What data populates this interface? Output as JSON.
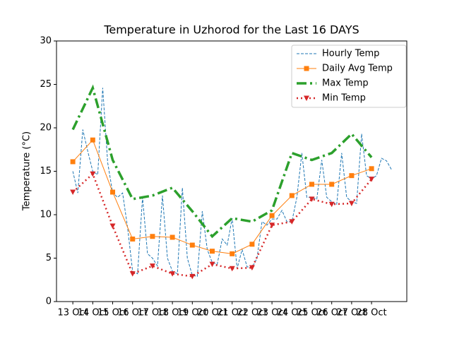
{
  "chart_data": {
    "type": "line",
    "title": "Temperature in Uzhorod for the Last 16 DAYS",
    "y_label": "Temperature (°C)",
    "xlim": [
      -0.82,
      16.77
    ],
    "ylim": [
      0,
      30
    ],
    "yticks": [
      0,
      5,
      10,
      15,
      20,
      25,
      30
    ],
    "xticks": [
      {
        "value": 0,
        "label": "13 Oct"
      },
      {
        "value": 1,
        "label": "14 Oct"
      },
      {
        "value": 2,
        "label": "15 Oct"
      },
      {
        "value": 3,
        "label": "16 Oct"
      },
      {
        "value": 4,
        "label": "17 Oct"
      },
      {
        "value": 5,
        "label": "18 Oct"
      },
      {
        "value": 6,
        "label": "19 Oct"
      },
      {
        "value": 7,
        "label": "20 Oct"
      },
      {
        "value": 8,
        "label": "21 Oct"
      },
      {
        "value": 9,
        "label": "22 Oct"
      },
      {
        "value": 10,
        "label": "23 Oct"
      },
      {
        "value": 11,
        "label": "24 Oct"
      },
      {
        "value": 12,
        "label": "25 Oct"
      },
      {
        "value": 13,
        "label": "26 Oct"
      },
      {
        "value": 14,
        "label": "27 Oct"
      },
      {
        "value": 15,
        "label": "28 Oct"
      }
    ],
    "x": [
      0,
      1,
      2,
      3,
      4,
      5,
      6,
      7,
      8,
      9,
      10,
      11,
      12,
      13,
      14,
      15
    ],
    "legend": "upper right",
    "series": [
      {
        "name": "Hourly Temp",
        "color": "#1f77b4",
        "style": "dashed",
        "linewidth": 1,
        "x": [
          0,
          0.25,
          0.5,
          0.75,
          1,
          1.25,
          1.5,
          1.75,
          2,
          2.25,
          2.5,
          2.75,
          3,
          3.25,
          3.5,
          3.75,
          4,
          4.25,
          4.5,
          4.75,
          5,
          5.25,
          5.5,
          5.75,
          6,
          6.25,
          6.5,
          6.75,
          7,
          7.25,
          7.5,
          7.75,
          8,
          8.25,
          8.5,
          8.75,
          9,
          9.25,
          9.5,
          9.75,
          10,
          10.25,
          10.5,
          10.75,
          11,
          11.25,
          11.5,
          11.75,
          12,
          12.25,
          12.5,
          12.75,
          13,
          13.25,
          13.5,
          13.75,
          14,
          14.25,
          14.5,
          14.75,
          15,
          15.25,
          15.5,
          15.75,
          16
        ],
        "values": [
          15,
          12.5,
          19.8,
          17.3,
          15,
          14.6,
          24.6,
          16,
          12.5,
          12,
          12.5,
          8.5,
          3.5,
          3.2,
          12,
          5.5,
          5,
          4.1,
          12.2,
          5,
          3.5,
          3.2,
          13.1,
          5,
          3,
          2.9,
          10.4,
          6,
          4.5,
          4.3,
          7.2,
          6.5,
          9.6,
          3.8,
          6,
          4,
          3.9,
          5,
          9.2,
          8.8,
          9.5,
          9.5,
          10.5,
          9.2,
          9.2,
          12,
          17.1,
          12,
          12,
          11.8,
          16.3,
          12,
          11.5,
          11.2,
          17.1,
          12,
          11.5,
          11.3,
          19.3,
          14.5,
          14.1,
          14.5,
          16.5,
          16.2,
          15.2
        ]
      },
      {
        "name": "Daily Avg Temp",
        "color": "#ff7f0e",
        "style": "solid",
        "linewidth": 1,
        "marker": "square",
        "values": [
          16.1,
          18.6,
          12.6,
          7.2,
          7.5,
          7.4,
          6.5,
          5.8,
          5.5,
          6.6,
          9.9,
          12.2,
          13.5,
          13.5,
          14.5,
          15.3
        ]
      },
      {
        "name": "Max Temp",
        "color": "#2ca02c",
        "style": "dashdot",
        "linewidth": 3.5,
        "values": [
          19.8,
          24.6,
          16.3,
          11.8,
          12.2,
          13.1,
          10.4,
          7.5,
          9.6,
          9.2,
          10.5,
          17.1,
          16.3,
          17.1,
          19.3,
          16.6
        ]
      },
      {
        "name": "Min Temp",
        "color": "#d62728",
        "style": "dotted",
        "linewidth": 2.5,
        "marker": "triangle_down",
        "values": [
          12.6,
          14.7,
          8.7,
          3.2,
          4.1,
          3.2,
          2.9,
          4.3,
          3.8,
          3.9,
          8.8,
          9.2,
          11.8,
          11.2,
          11.3,
          14.1
        ]
      }
    ]
  }
}
